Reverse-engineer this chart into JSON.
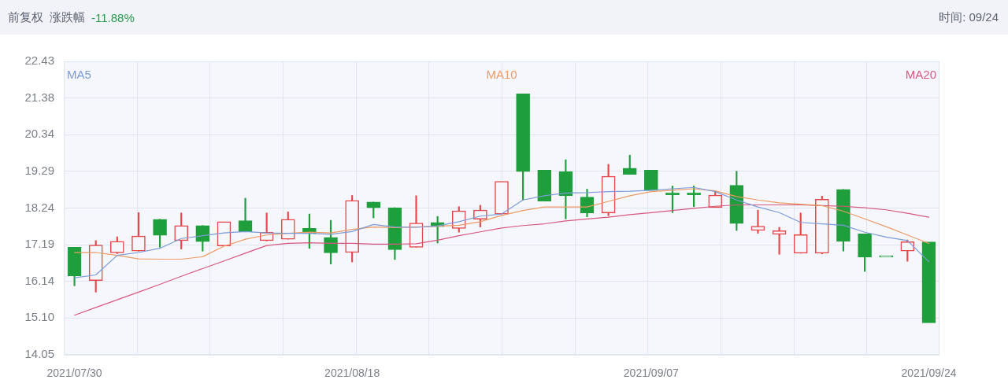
{
  "chart_data": {
    "type": "candlestick",
    "title": "前复权",
    "annotations": [
      "涨跌幅",
      "-11.88%",
      "时间: 09/24"
    ],
    "categories": [
      "2021/07/30",
      null,
      null,
      null,
      null,
      null,
      null,
      null,
      null,
      null,
      null,
      null,
      null,
      "2021/08/18",
      null,
      null,
      null,
      null,
      null,
      null,
      null,
      null,
      null,
      null,
      null,
      null,
      null,
      "2021/09/07",
      null,
      null,
      null,
      null,
      null,
      null,
      null,
      null,
      null,
      null,
      null,
      null,
      "2021/09/24"
    ],
    "ohlc": [
      [
        17.12,
        17.12,
        16.02,
        16.3
      ],
      [
        16.17,
        17.31,
        15.84,
        17.18
      ],
      [
        16.96,
        17.42,
        16.94,
        17.29
      ],
      [
        17.01,
        18.11,
        17.01,
        17.44
      ],
      [
        17.92,
        17.92,
        17.12,
        17.46
      ],
      [
        17.31,
        18.1,
        17.07,
        17.74
      ],
      [
        17.74,
        17.74,
        17.01,
        17.28
      ],
      [
        17.16,
        17.85,
        17.16,
        17.85
      ],
      [
        17.88,
        18.52,
        17.56,
        17.56
      ],
      [
        17.31,
        18.1,
        17.3,
        17.55
      ],
      [
        17.35,
        18.13,
        17.35,
        17.92
      ],
      [
        17.66,
        18.07,
        17.09,
        17.51
      ],
      [
        17.4,
        17.89,
        16.64,
        16.96
      ],
      [
        16.97,
        18.6,
        16.7,
        18.46
      ],
      [
        18.41,
        18.41,
        17.96,
        18.25
      ],
      [
        18.25,
        18.25,
        16.77,
        17.05
      ],
      [
        17.12,
        18.59,
        17.12,
        17.81
      ],
      [
        17.83,
        18.0,
        17.24,
        17.71
      ],
      [
        17.66,
        18.28,
        17.55,
        18.16
      ],
      [
        17.92,
        18.32,
        17.7,
        18.18
      ],
      [
        18.07,
        19.0,
        18.07,
        19.0
      ],
      [
        21.5,
        21.5,
        18.47,
        19.28
      ],
      [
        19.32,
        19.32,
        18.44,
        18.44
      ],
      [
        19.28,
        19.62,
        17.93,
        18.59
      ],
      [
        18.55,
        18.78,
        17.99,
        18.1
      ],
      [
        18.1,
        19.49,
        18.02,
        19.15
      ],
      [
        19.38,
        19.75,
        19.2,
        19.2
      ],
      [
        19.32,
        19.32,
        18.74,
        18.74
      ],
      [
        18.67,
        18.87,
        18.11,
        18.62
      ],
      [
        18.67,
        18.87,
        18.28,
        18.62
      ],
      [
        18.26,
        18.72,
        18.26,
        18.61
      ],
      [
        18.89,
        19.29,
        17.6,
        17.8
      ],
      [
        17.6,
        18.18,
        17.52,
        17.72
      ],
      [
        17.49,
        17.69,
        16.92,
        17.59
      ],
      [
        16.95,
        18.1,
        16.95,
        17.48
      ],
      [
        16.95,
        18.58,
        16.93,
        18.49
      ],
      [
        18.77,
        18.77,
        17.01,
        17.29
      ],
      [
        17.5,
        17.5,
        16.43,
        16.84
      ],
      [
        16.84,
        16.84,
        16.84,
        16.84
      ],
      [
        17.01,
        17.33,
        16.72,
        17.28
      ],
      [
        17.27,
        17.27,
        14.96,
        14.96
      ]
    ],
    "colors": [
      "#1e9f3c",
      "#e5474b",
      "#e5474b",
      "#e5474b",
      "#1e9f3c",
      "#e5474b",
      "#1e9f3c",
      "#e5474b",
      "#1e9f3c",
      "#e5474b",
      "#e5474b",
      "#1e9f3c",
      "#1e9f3c",
      "#e5474b",
      "#1e9f3c",
      "#1e9f3c",
      "#e5474b",
      "#1e9f3c",
      "#e5474b",
      "#e5474b",
      "#e5474b",
      "#1e9f3c",
      "#1e9f3c",
      "#1e9f3c",
      "#1e9f3c",
      "#e5474b",
      "#1e9f3c",
      "#1e9f3c",
      "#1e9f3c",
      "#1e9f3c",
      "#e5474b",
      "#1e9f3c",
      "#e5474b",
      "#e5474b",
      "#e5474b",
      "#e5474b",
      "#1e9f3c",
      "#1e9f3c",
      "#1e9f3c",
      "#e5474b",
      "#1e9f3c"
    ],
    "series": [
      {
        "name": "MA5",
        "type": "line",
        "color": "#7b9bd9",
        "values": [
          16.25,
          16.33,
          16.89,
          16.97,
          17.09,
          17.37,
          17.45,
          17.53,
          17.57,
          17.53,
          17.52,
          17.52,
          17.49,
          17.57,
          17.77,
          17.7,
          17.69,
          17.73,
          17.85,
          18.01,
          18.07,
          18.47,
          18.59,
          18.67,
          18.68,
          18.71,
          18.72,
          18.75,
          18.79,
          18.83,
          18.71,
          18.47,
          18.27,
          18.11,
          17.83,
          17.79,
          17.75,
          17.55,
          17.41,
          17.31,
          16.71
        ]
      },
      {
        "name": "MA10",
        "type": "line",
        "color": "#ee9a63",
        "values": [
          16.97,
          16.97,
          16.89,
          16.79,
          16.78,
          16.78,
          16.85,
          17.15,
          17.35,
          17.47,
          17.52,
          17.55,
          17.53,
          17.63,
          17.7,
          17.68,
          17.7,
          17.72,
          17.75,
          17.85,
          18.03,
          18.17,
          18.27,
          18.27,
          18.27,
          18.43,
          18.59,
          18.71,
          18.75,
          18.79,
          18.73,
          18.57,
          18.47,
          18.39,
          18.35,
          18.31,
          18.15,
          17.93,
          17.71,
          17.47,
          17.23
        ]
      },
      {
        "name": "MA20",
        "type": "line",
        "color": "#d9577f",
        "values": [
          15.18,
          15.4,
          15.62,
          15.84,
          16.06,
          16.29,
          16.51,
          16.73,
          16.95,
          17.17,
          17.23,
          17.25,
          17.23,
          17.23,
          17.21,
          17.21,
          17.22,
          17.32,
          17.45,
          17.56,
          17.67,
          17.74,
          17.79,
          17.87,
          17.93,
          17.98,
          18.05,
          18.11,
          18.17,
          18.23,
          18.29,
          18.33,
          18.33,
          18.33,
          18.33,
          18.31,
          18.29,
          18.25,
          18.19,
          18.09,
          17.98
        ]
      }
    ],
    "ylim": [
      14.05,
      22.43
    ],
    "yticks": [
      14.05,
      {
        "value": 15.1,
        "label": "15.10"
      },
      16.14,
      17.19,
      18.24,
      19.29,
      20.34,
      21.38,
      22.43
    ],
    "grid": true,
    "legend": "top"
  }
}
